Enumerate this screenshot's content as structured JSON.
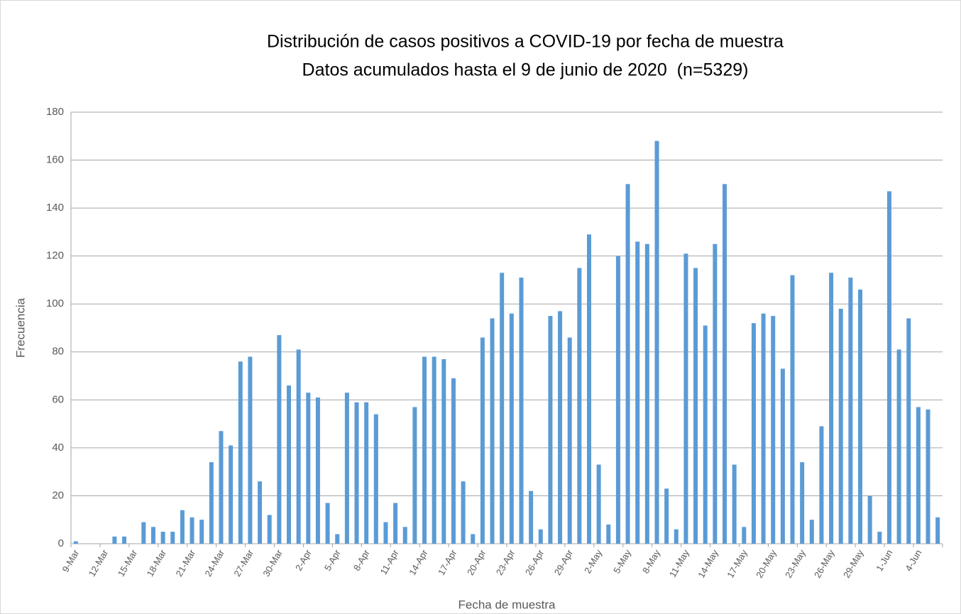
{
  "chart_data": {
    "type": "bar",
    "title": "Distribución de casos positivos a COVID-19 por fecha de muestra",
    "subtitle": "Datos acumulados hasta el 9 de junio de 2020  (n=5329)",
    "x_label": "Fecha de muestra",
    "y_label": "Frecuencia",
    "categories": [
      "9-Mar",
      null,
      null,
      "12-Mar",
      null,
      null,
      "15-Mar",
      null,
      null,
      "18-Mar",
      null,
      null,
      "21-Mar",
      null,
      null,
      "24-Mar",
      null,
      null,
      "27-Mar",
      null,
      null,
      "30-Mar",
      null,
      null,
      "2-Apr",
      null,
      null,
      "5-Apr",
      null,
      null,
      "8-Apr",
      null,
      null,
      "11-Apr",
      null,
      null,
      "14-Apr",
      null,
      null,
      "17-Apr",
      null,
      null,
      "20-Apr",
      null,
      null,
      "23-Apr",
      null,
      null,
      "26-Apr",
      null,
      null,
      "29-Apr",
      null,
      null,
      "2-May",
      null,
      null,
      "5-May",
      null,
      null,
      "8-May",
      null,
      null,
      "11-May",
      null,
      null,
      "14-May",
      null,
      null,
      "17-May",
      null,
      null,
      "20-May",
      null,
      null,
      "23-May",
      null,
      null,
      "26-May",
      null,
      null,
      "29-May",
      null,
      null,
      "1-Jun",
      null,
      null,
      "4-Jun",
      null,
      null
    ],
    "values": [
      1,
      0,
      0,
      0,
      3,
      3,
      0,
      9,
      7,
      5,
      5,
      14,
      11,
      10,
      34,
      47,
      41,
      76,
      78,
      26,
      12,
      87,
      66,
      81,
      63,
      61,
      17,
      4,
      63,
      59,
      59,
      54,
      9,
      17,
      7,
      57,
      78,
      78,
      77,
      69,
      26,
      4,
      86,
      94,
      113,
      96,
      111,
      22,
      6,
      95,
      97,
      86,
      115,
      129,
      33,
      8,
      120,
      150,
      126,
      125,
      168,
      23,
      6,
      121,
      115,
      91,
      125,
      150,
      33,
      7,
      92,
      96,
      95,
      73,
      112,
      34,
      10,
      49,
      113,
      98,
      111,
      106,
      20,
      5,
      147,
      81,
      94,
      57,
      56,
      11
    ],
    "color": "#5b9bd5",
    "ylim": [
      0,
      180
    ],
    "yticks": [
      0,
      20,
      40,
      60,
      80,
      100,
      120,
      140,
      160,
      180
    ],
    "grid": true
  }
}
